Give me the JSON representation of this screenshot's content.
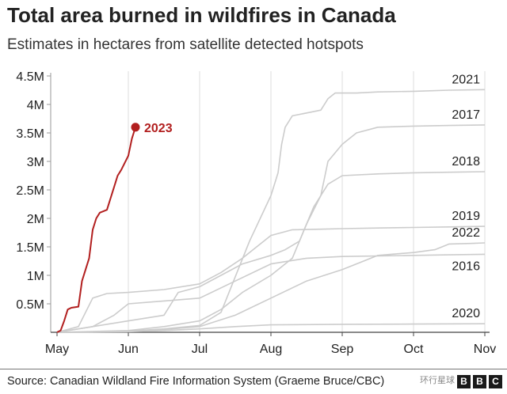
{
  "title": "Total area burned in wildfires in Canada",
  "subtitle": "Estimates in hectares from satellite detected hotspots",
  "source": "Source: Canadian Wildland Fire Information System (Graeme Bruce/CBC)",
  "watermark": "环行星球",
  "brand": "BBC",
  "brand_letters": [
    "B",
    "B",
    "C"
  ],
  "colors": {
    "highlight": "#b21f1f",
    "other": "#cccccc",
    "grid": "#dddddd",
    "text": "#222222"
  },
  "chart_data": {
    "type": "line",
    "title": "Total area burned in wildfires in Canada",
    "subtitle": "Estimates in hectares from satellite detected hotspots",
    "xlabel": "",
    "ylabel": "",
    "x_unit": "month",
    "xlim": [
      0,
      6
    ],
    "ylim": [
      0,
      4500000
    ],
    "x_ticks": [
      0,
      1,
      2,
      3,
      4,
      5,
      6
    ],
    "x_tick_labels": [
      "May",
      "Jun",
      "Jul",
      "Aug",
      "Sep",
      "Oct",
      "Nov"
    ],
    "y_ticks": [
      500000,
      1000000,
      1500000,
      2000000,
      2500000,
      3000000,
      3500000,
      4000000,
      4500000
    ],
    "y_tick_labels": [
      "0.5M",
      "1M",
      "1.5M",
      "2M",
      "2.5M",
      "3M",
      "3.5M",
      "4M",
      "4.5M"
    ],
    "grid": "vertical",
    "series": [
      {
        "name": "2023",
        "highlight": true,
        "x": [
          0,
          0.05,
          0.1,
          0.15,
          0.2,
          0.3,
          0.35,
          0.45,
          0.5,
          0.55,
          0.6,
          0.7,
          0.8,
          0.85,
          0.9,
          1.0,
          1.05,
          1.1
        ],
        "y": [
          0,
          30000,
          200000,
          400000,
          430000,
          450000,
          900000,
          1300000,
          1800000,
          2000000,
          2100000,
          2150000,
          2550000,
          2750000,
          2850000,
          3100000,
          3400000,
          3600000
        ]
      },
      {
        "name": "2021",
        "x": [
          0,
          1,
          1.5,
          2,
          2.3,
          2.7,
          3.0,
          3.1,
          3.15,
          3.2,
          3.3,
          3.5,
          3.7,
          3.8,
          3.9,
          4.0,
          4.2,
          4.5,
          5.0,
          5.5,
          6.0
        ],
        "y": [
          0,
          20000,
          60000,
          120000,
          350000,
          1600000,
          2400000,
          2800000,
          3300000,
          3600000,
          3800000,
          3850000,
          3900000,
          4100000,
          4200000,
          4200000,
          4200000,
          4220000,
          4230000,
          4250000,
          4260000
        ]
      },
      {
        "name": "2017",
        "x": [
          0,
          1,
          1.5,
          2,
          2.3,
          2.6,
          3.0,
          3.3,
          3.5,
          3.7,
          3.8,
          4.0,
          4.2,
          4.5,
          5.0,
          5.5,
          6.0
        ],
        "y": [
          0,
          30000,
          100000,
          200000,
          400000,
          700000,
          1000000,
          1300000,
          1900000,
          2400000,
          3000000,
          3300000,
          3500000,
          3600000,
          3620000,
          3630000,
          3640000
        ]
      },
      {
        "name": "2018",
        "x": [
          0,
          0.5,
          1,
          1.5,
          1.7,
          2.0,
          2.3,
          2.6,
          3.0,
          3.2,
          3.4,
          3.6,
          3.8,
          4.0,
          4.5,
          5.0,
          5.5,
          6.0
        ],
        "y": [
          0,
          100000,
          200000,
          300000,
          700000,
          800000,
          1000000,
          1200000,
          1350000,
          1450000,
          1600000,
          2200000,
          2600000,
          2750000,
          2780000,
          2800000,
          2810000,
          2820000
        ]
      },
      {
        "name": "2019",
        "x": [
          0,
          0.3,
          0.5,
          0.7,
          1.0,
          1.5,
          2.0,
          2.3,
          2.6,
          3.0,
          3.3,
          3.7,
          4.0,
          4.5,
          5.0,
          5.5,
          6.0
        ],
        "y": [
          0,
          100000,
          600000,
          680000,
          700000,
          750000,
          850000,
          1050000,
          1300000,
          1700000,
          1800000,
          1810000,
          1820000,
          1830000,
          1840000,
          1850000,
          1860000
        ]
      },
      {
        "name": "2022",
        "x": [
          0,
          1,
          1.5,
          2,
          2.5,
          3.0,
          3.5,
          4.0,
          4.3,
          4.5,
          5.0,
          5.3,
          5.5,
          5.8,
          6.0
        ],
        "y": [
          0,
          20000,
          50000,
          100000,
          300000,
          600000,
          900000,
          1100000,
          1250000,
          1350000,
          1400000,
          1450000,
          1550000,
          1560000,
          1570000
        ]
      },
      {
        "name": "2016",
        "x": [
          0,
          0.5,
          0.8,
          1.0,
          1.5,
          2.0,
          2.5,
          3.0,
          3.5,
          4.0,
          4.5,
          5.0,
          5.5,
          6.0
        ],
        "y": [
          0,
          100000,
          300000,
          500000,
          550000,
          600000,
          900000,
          1200000,
          1300000,
          1330000,
          1340000,
          1350000,
          1360000,
          1370000
        ]
      },
      {
        "name": "2020",
        "x": [
          0,
          1,
          1.5,
          2,
          2.5,
          3.0,
          4.0,
          5.0,
          6.0
        ],
        "y": [
          0,
          10000,
          30000,
          60000,
          100000,
          130000,
          140000,
          145000,
          150000
        ]
      }
    ]
  }
}
